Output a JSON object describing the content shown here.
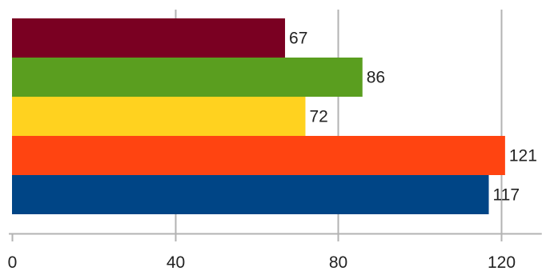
{
  "chart_data": {
    "type": "bar",
    "orientation": "horizontal",
    "title": "",
    "xlabel": "",
    "ylabel": "",
    "xlim": [
      0,
      130
    ],
    "x_ticks": [
      0,
      40,
      80,
      120
    ],
    "grid": true,
    "legend": "none",
    "series": [
      {
        "values": [
          67
        ],
        "color": "#7a0022"
      },
      {
        "values": [
          86
        ],
        "color": "#5a9e1f"
      },
      {
        "values": [
          72
        ],
        "color": "#ffd21f"
      },
      {
        "values": [
          121
        ],
        "color": "#ff4411"
      },
      {
        "values": [
          117
        ],
        "color": "#004586"
      }
    ],
    "gridline_color": "#b3b3b3",
    "axis_color": "#b3b3b3"
  }
}
